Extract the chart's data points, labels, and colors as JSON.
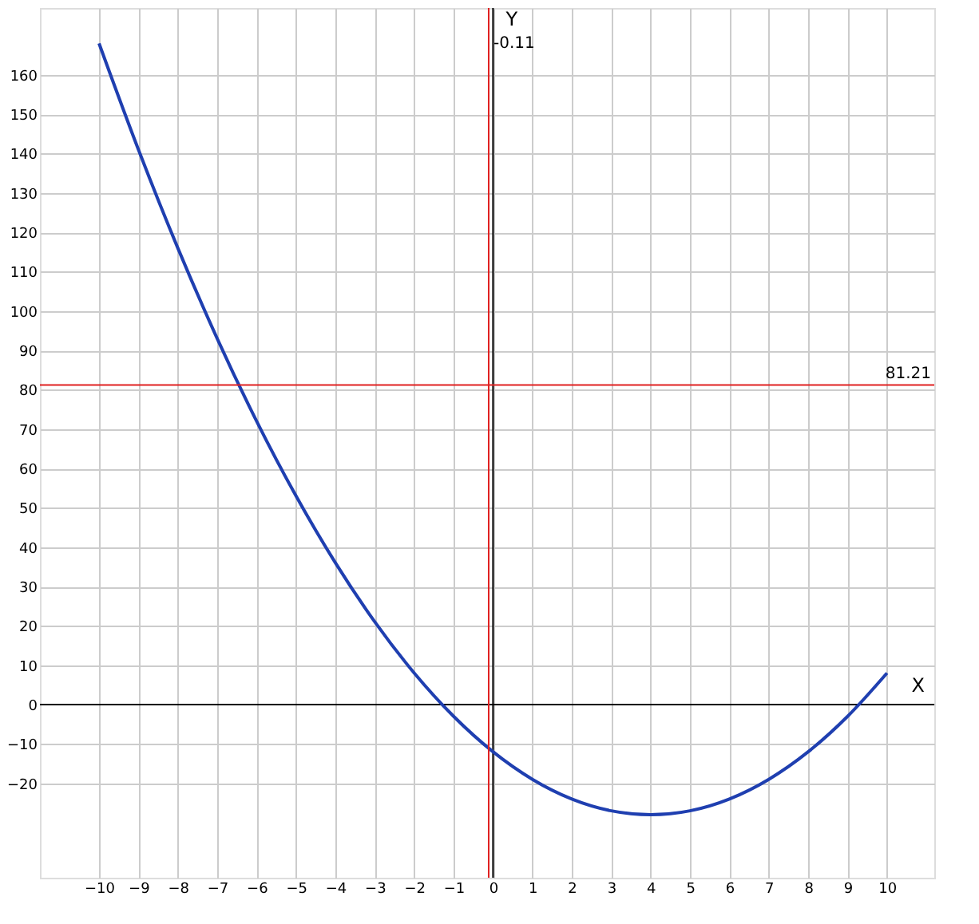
{
  "chart_data": {
    "type": "line",
    "xlabel": "X",
    "ylabel": "Y",
    "x": [
      -10,
      -9,
      -8,
      -7,
      -6,
      -5,
      -4,
      -3,
      -2,
      -1,
      0,
      1,
      2,
      3,
      4,
      5,
      6,
      7,
      8,
      9,
      10
    ],
    "series": [
      {
        "color": "#1f3fb0",
        "values": [
          168,
          141,
          116,
          93,
          72,
          53,
          36,
          21,
          8,
          -3,
          -12,
          -19,
          -24,
          -27,
          -28,
          -27,
          -24,
          -19,
          -12,
          -3,
          8
        ]
      }
    ],
    "xlim": [
      -11.5,
      11.2
    ],
    "ylim": [
      -44,
      177
    ],
    "xticks": [
      -10,
      -9,
      -8,
      -7,
      -6,
      -5,
      -4,
      -3,
      -2,
      -1,
      0,
      1,
      2,
      3,
      4,
      5,
      6,
      7,
      8,
      9,
      10
    ],
    "yticks": [
      -20,
      -10,
      0,
      10,
      20,
      30,
      40,
      50,
      60,
      70,
      80,
      90,
      100,
      110,
      120,
      130,
      140,
      150,
      160
    ],
    "ref_lines": [
      {
        "axis": "x",
        "value": -0.11,
        "label": "-0.11",
        "color": "#e02020"
      },
      {
        "axis": "y",
        "value": 81.21,
        "label": "81.21",
        "color": "#e02020"
      }
    ],
    "grid": true,
    "marker": "none",
    "line_style": "solid"
  }
}
